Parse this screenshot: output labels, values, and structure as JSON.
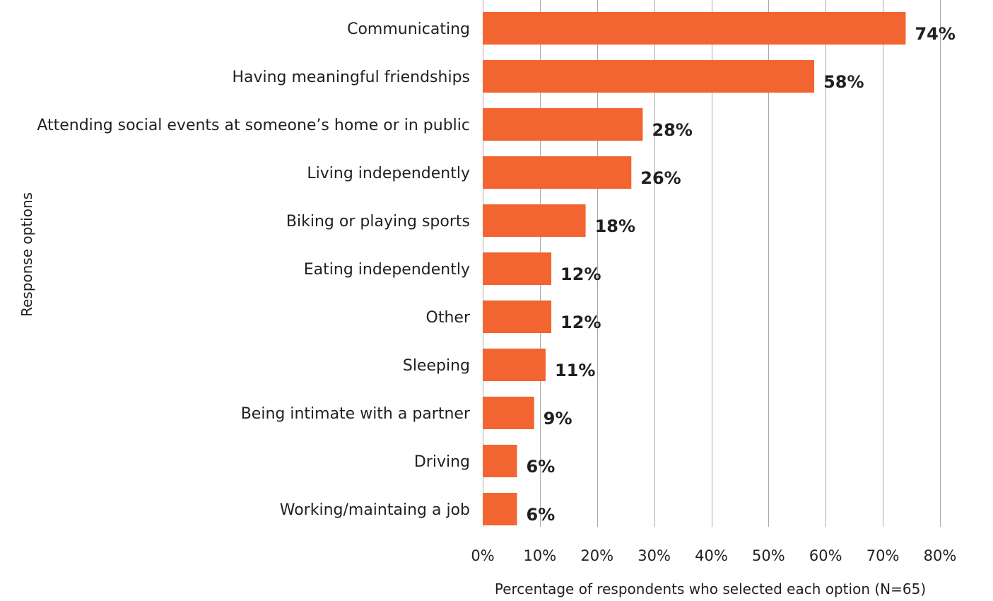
{
  "chart_data": {
    "type": "bar",
    "orientation": "horizontal",
    "categories": [
      "Communicating",
      "Having meaningful friendships",
      "Attending social events at someone’s home or in public",
      "Living independently",
      "Biking or playing sports",
      "Eating independently",
      "Other",
      "Sleeping",
      "Being intimate with a partner",
      "Driving",
      "Working/maintaing a job"
    ],
    "values": [
      74,
      58,
      28,
      26,
      18,
      12,
      12,
      11,
      9,
      6,
      6
    ],
    "value_labels": [
      "74%",
      "58%",
      "28%",
      "26%",
      "18%",
      "12%",
      "12%",
      "11%",
      "9%",
      "6%",
      "6%"
    ],
    "xticks": [
      0,
      10,
      20,
      30,
      40,
      50,
      60,
      70,
      80
    ],
    "xtick_labels": [
      "0%",
      "10%",
      "20%",
      "30%",
      "40%",
      "50%",
      "60%",
      "70%",
      "80%"
    ],
    "xlim": [
      0,
      80
    ],
    "xlabel": "Percentage of respondents who selected each option (N=65)",
    "ylabel": "Response options",
    "grid": "vertical",
    "bar_color": "#f26531"
  }
}
